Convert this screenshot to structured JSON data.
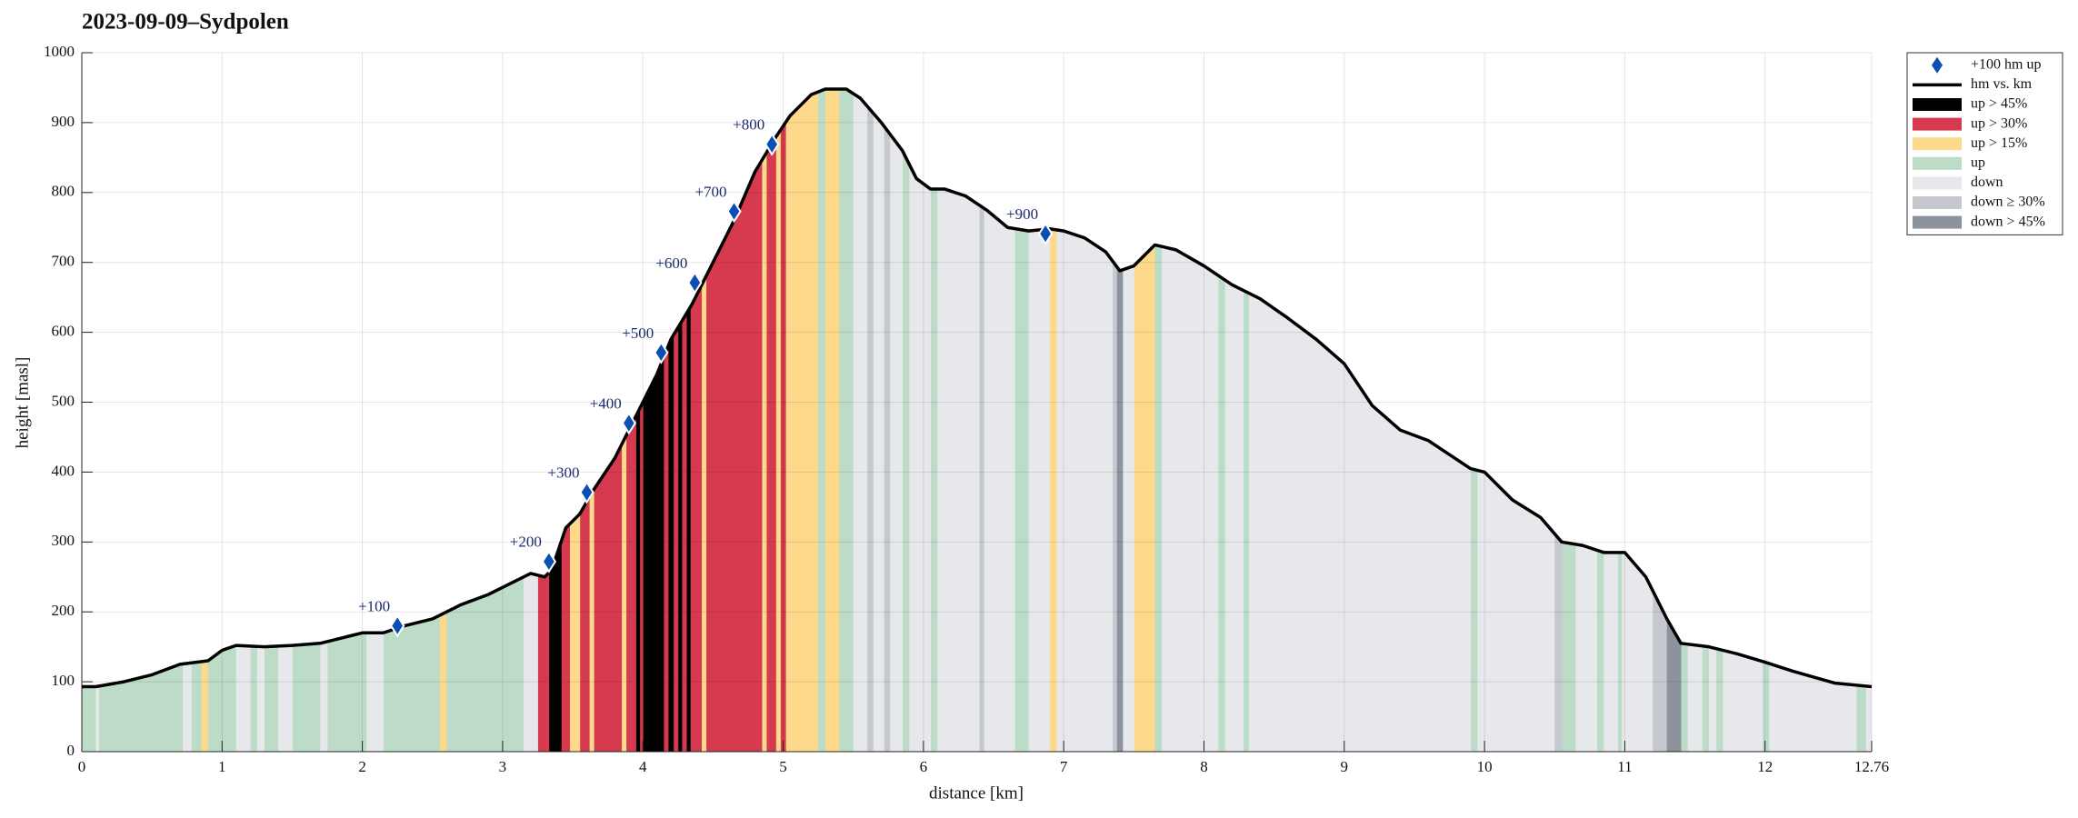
{
  "chart_data": {
    "type": "area",
    "title": "2023-09-09–Sydpolen",
    "xlabel": "distance [km]",
    "ylabel": "height [masl]",
    "xlim": [
      0,
      12.76
    ],
    "xticks": [
      0,
      1,
      2,
      3,
      4,
      5,
      6,
      7,
      8,
      9,
      10,
      11,
      12,
      12.76
    ],
    "ylim": [
      0,
      1000
    ],
    "yticks": [
      0,
      100,
      200,
      300,
      400,
      500,
      600,
      700,
      800,
      900,
      1000
    ],
    "grid": true,
    "legend": "outside-right",
    "series": [
      {
        "name": "+100 hm up",
        "style": "diamond",
        "color": "#0b4fb5",
        "x": [
          2.25,
          3.33,
          3.6,
          3.9,
          4.13,
          4.37,
          4.65,
          4.92,
          6.87
        ],
        "values": [
          180,
          272,
          371,
          470,
          571,
          671,
          773,
          869,
          741
        ],
        "labels": [
          "+100",
          "+200",
          "+300",
          "+400",
          "+500",
          "+600",
          "+700",
          "+800",
          "+900"
        ]
      },
      {
        "name": "hm vs. km",
        "style": "line",
        "color": "#000000",
        "x": [
          0,
          0.1,
          0.3,
          0.5,
          0.7,
          0.9,
          1.0,
          1.1,
          1.3,
          1.5,
          1.7,
          1.9,
          2.0,
          2.15,
          2.3,
          2.5,
          2.7,
          2.9,
          3.1,
          3.2,
          3.3,
          3.35,
          3.45,
          3.55,
          3.65,
          3.8,
          3.95,
          4.1,
          4.2,
          4.35,
          4.5,
          4.65,
          4.8,
          4.95,
          5.05,
          5.2,
          5.3,
          5.45,
          5.55,
          5.7,
          5.85,
          5.95,
          6.05,
          6.15,
          6.3,
          6.45,
          6.6,
          6.75,
          6.9,
          7.0,
          7.15,
          7.3,
          7.4,
          7.5,
          7.65,
          7.8,
          8.0,
          8.2,
          8.4,
          8.6,
          8.8,
          9.0,
          9.2,
          9.4,
          9.6,
          9.75,
          9.9,
          10.0,
          10.2,
          10.4,
          10.55,
          10.7,
          10.85,
          11.0,
          11.15,
          11.3,
          11.4,
          11.6,
          11.8,
          12.0,
          12.2,
          12.5,
          12.76
        ],
        "values": [
          93,
          93,
          100,
          110,
          125,
          130,
          145,
          152,
          150,
          152,
          155,
          165,
          170,
          170,
          180,
          190,
          210,
          225,
          245,
          255,
          250,
          260,
          320,
          340,
          375,
          420,
          480,
          540,
          590,
          640,
          700,
          760,
          830,
          880,
          910,
          940,
          948,
          948,
          935,
          900,
          860,
          820,
          805,
          805,
          795,
          775,
          750,
          745,
          748,
          745,
          735,
          715,
          688,
          695,
          725,
          718,
          695,
          668,
          648,
          620,
          590,
          555,
          495,
          460,
          445,
          425,
          405,
          400,
          360,
          335,
          300,
          295,
          285,
          285,
          250,
          190,
          155,
          150,
          140,
          128,
          115,
          98,
          93
        ]
      },
      {
        "name": "up > 45%",
        "style": "band",
        "color": "#000000",
        "ranges": [
          [
            3.33,
            3.42
          ],
          [
            3.95,
            3.98
          ],
          [
            4.0,
            4.15
          ],
          [
            4.18,
            4.22
          ],
          [
            4.25,
            4.28
          ],
          [
            4.31,
            4.34
          ]
        ]
      },
      {
        "name": "up > 30%",
        "style": "band",
        "color": "#d63a4e",
        "ranges": [
          [
            3.25,
            3.33
          ],
          [
            3.42,
            3.48
          ],
          [
            3.55,
            3.62
          ],
          [
            3.65,
            3.85
          ],
          [
            3.88,
            3.95
          ],
          [
            3.98,
            4.0
          ],
          [
            4.15,
            4.18
          ],
          [
            4.22,
            4.25
          ],
          [
            4.28,
            4.31
          ],
          [
            4.34,
            4.42
          ],
          [
            4.45,
            4.85
          ],
          [
            4.88,
            4.95
          ],
          [
            4.98,
            5.02
          ]
        ]
      },
      {
        "name": "up > 15%",
        "style": "band",
        "color": "#fcd98b",
        "ranges": [
          [
            0.85,
            0.9
          ],
          [
            2.55,
            2.6
          ],
          [
            3.48,
            3.55
          ],
          [
            3.62,
            3.65
          ],
          [
            3.85,
            3.88
          ],
          [
            4.42,
            4.45
          ],
          [
            4.85,
            4.88
          ],
          [
            4.95,
            4.98
          ],
          [
            5.02,
            5.25
          ],
          [
            5.3,
            5.4
          ],
          [
            6.9,
            6.95
          ],
          [
            7.5,
            7.65
          ]
        ]
      },
      {
        "name": "up",
        "style": "band",
        "color": "#bcdcc8",
        "ranges": [
          [
            0,
            0.1
          ],
          [
            0.12,
            0.72
          ],
          [
            0.78,
            0.85
          ],
          [
            0.9,
            1.1
          ],
          [
            1.2,
            1.25
          ],
          [
            1.3,
            1.4
          ],
          [
            1.5,
            1.7
          ],
          [
            1.75,
            2.03
          ],
          [
            2.15,
            2.55
          ],
          [
            2.6,
            3.15
          ],
          [
            5.25,
            5.3
          ],
          [
            5.4,
            5.5
          ],
          [
            5.85,
            5.9
          ],
          [
            6.05,
            6.1
          ],
          [
            6.65,
            6.75
          ],
          [
            7.65,
            7.7
          ],
          [
            8.1,
            8.15
          ],
          [
            8.28,
            8.32
          ],
          [
            9.9,
            9.95
          ],
          [
            10.55,
            10.65
          ],
          [
            10.8,
            10.85
          ],
          [
            10.95,
            10.98
          ],
          [
            11.4,
            11.45
          ],
          [
            11.55,
            11.6
          ],
          [
            11.65,
            11.7
          ],
          [
            11.98,
            12.03
          ],
          [
            12.65,
            12.72
          ]
        ]
      },
      {
        "name": "down",
        "style": "band",
        "color": "#e6e8eb",
        "ranges": [
          [
            0.1,
            0.12
          ],
          [
            0.72,
            0.78
          ],
          [
            1.1,
            1.2
          ],
          [
            1.25,
            1.3
          ],
          [
            1.4,
            1.5
          ],
          [
            1.7,
            1.75
          ],
          [
            2.03,
            2.15
          ],
          [
            3.15,
            3.25
          ],
          [
            5.5,
            5.6
          ],
          [
            5.64,
            5.72
          ],
          [
            5.76,
            5.85
          ],
          [
            5.9,
            6.05
          ],
          [
            6.1,
            6.4
          ],
          [
            6.43,
            6.65
          ],
          [
            6.75,
            6.9
          ],
          [
            6.95,
            7.35
          ],
          [
            7.42,
            7.5
          ],
          [
            7.7,
            8.1
          ],
          [
            8.15,
            8.28
          ],
          [
            8.32,
            9.9
          ],
          [
            9.95,
            10.5
          ],
          [
            10.65,
            10.8
          ],
          [
            10.85,
            10.95
          ],
          [
            10.98,
            11.2
          ],
          [
            11.45,
            11.55
          ],
          [
            11.6,
            11.65
          ],
          [
            11.7,
            11.98
          ],
          [
            12.03,
            12.65
          ],
          [
            12.72,
            12.76
          ]
        ]
      },
      {
        "name": "down ≥ 30%",
        "style": "band",
        "color": "#c5c8cf",
        "ranges": [
          [
            5.6,
            5.64
          ],
          [
            5.72,
            5.76
          ],
          [
            6.4,
            6.43
          ],
          [
            7.35,
            7.38
          ],
          [
            10.5,
            10.55
          ],
          [
            11.2,
            11.3
          ]
        ]
      },
      {
        "name": "down > 45%",
        "style": "band",
        "color": "#8d939d",
        "ranges": [
          [
            7.38,
            7.42
          ],
          [
            11.3,
            11.4
          ]
        ]
      }
    ]
  }
}
